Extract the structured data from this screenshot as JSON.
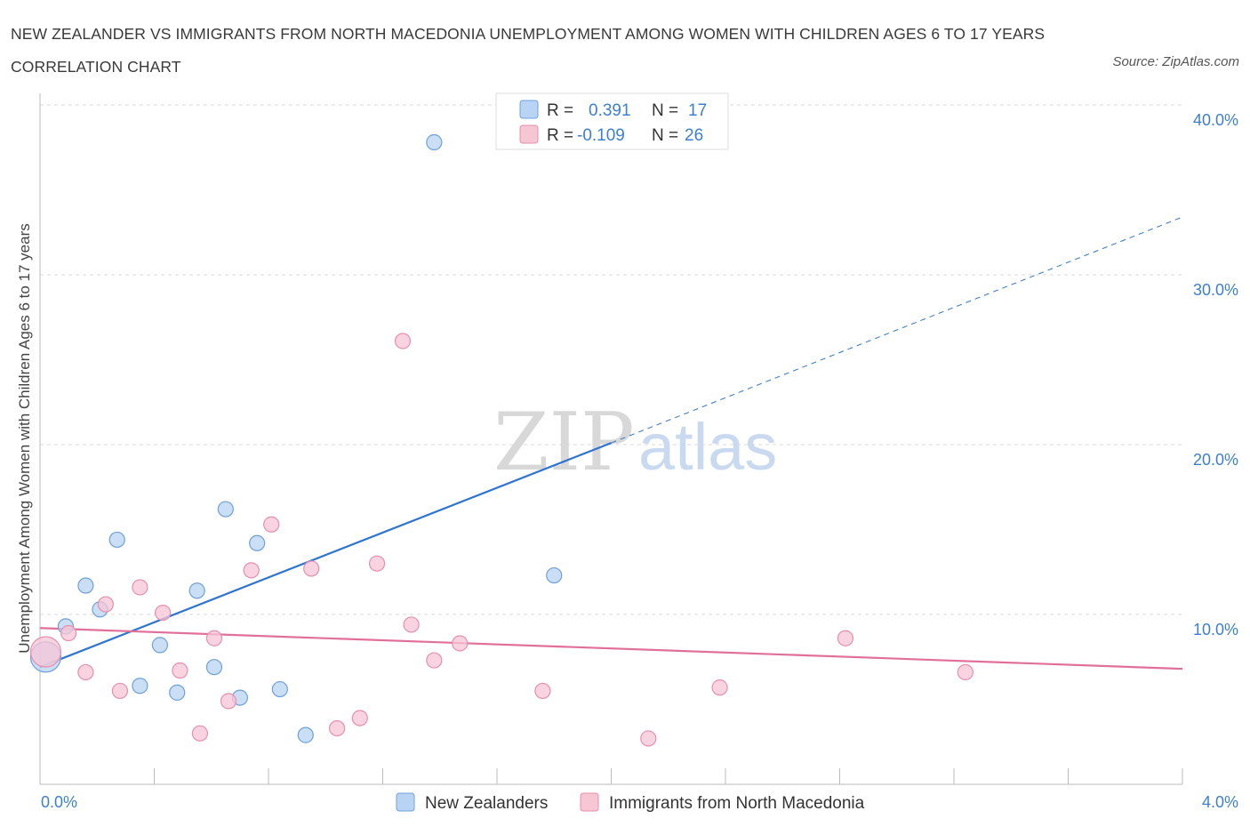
{
  "header": {
    "title": "NEW ZEALANDER VS IMMIGRANTS FROM NORTH MACEDONIA UNEMPLOYMENT AMONG WOMEN WITH CHILDREN AGES 6 TO 17 YEARS CORRELATION CHART",
    "source": "Source: ZipAtlas.com"
  },
  "watermark": {
    "zip": "ZIP",
    "atlas": "atlas"
  },
  "legend_top": {
    "rows": [
      {
        "r_label": "R =",
        "r_value": "0.391",
        "n_label": "N =",
        "n_value": "17"
      },
      {
        "r_label": "R =",
        "r_value": "-0.109",
        "n_label": "N =",
        "n_value": "26"
      }
    ]
  },
  "legend_bottom": {
    "items": [
      "New Zealanders",
      "Immigrants from North Macedonia"
    ]
  },
  "colors": {
    "blue_fill": "#b8d3f3",
    "blue_stroke": "#6fa0dc",
    "blue_line": "#2f74cf",
    "pink_fill": "#f7c6d5",
    "pink_stroke": "#e88fab",
    "pink_line": "#e0709a",
    "grid": "#d9d9d9",
    "axis_text": "#3d7fd0"
  },
  "chart_data": {
    "type": "scatter",
    "title": "NEW ZEALANDER VS IMMIGRANTS FROM NORTH MACEDONIA UNEMPLOYMENT AMONG WOMEN WITH CHILDREN AGES 6 TO 17 YEARS CORRELATION CHART",
    "xlabel": "",
    "ylabel": "Unemployment Among Women with Children Ages 6 to 17 years",
    "xlim": [
      0.0,
      4.0
    ],
    "ylim": [
      0.0,
      40.0
    ],
    "x_tick_labels": [
      "0.0%",
      "4.0%"
    ],
    "y_ticks": [
      10,
      20,
      30,
      40
    ],
    "y_tick_labels": [
      "10.0%",
      "20.0%",
      "30.0%",
      "40.0%"
    ],
    "grid": true,
    "series": [
      {
        "name": "New Zealanders",
        "color_key": "blue",
        "r": 0.391,
        "n": 17,
        "points": [
          {
            "x": 0.02,
            "y": 7.5,
            "big": true
          },
          {
            "x": 0.09,
            "y": 9.3
          },
          {
            "x": 0.16,
            "y": 11.7
          },
          {
            "x": 0.21,
            "y": 10.3
          },
          {
            "x": 0.27,
            "y": 14.4
          },
          {
            "x": 0.35,
            "y": 5.8
          },
          {
            "x": 0.42,
            "y": 8.2
          },
          {
            "x": 0.48,
            "y": 5.4
          },
          {
            "x": 0.55,
            "y": 11.4
          },
          {
            "x": 0.61,
            "y": 6.9
          },
          {
            "x": 0.65,
            "y": 16.2
          },
          {
            "x": 0.7,
            "y": 5.1
          },
          {
            "x": 0.76,
            "y": 14.2
          },
          {
            "x": 0.84,
            "y": 5.6
          },
          {
            "x": 0.93,
            "y": 2.9
          },
          {
            "x": 1.38,
            "y": 37.8
          },
          {
            "x": 1.8,
            "y": 12.3
          }
        ],
        "trend": {
          "x0": 0.0,
          "y0": 6.9,
          "x1": 2.0,
          "y1": 20.1,
          "dash_x1": 4.0,
          "dash_y1": 33.4
        }
      },
      {
        "name": "Immigrants from North Macedonia",
        "color_key": "pink",
        "r": -0.109,
        "n": 26,
        "points": [
          {
            "x": 0.02,
            "y": 7.8,
            "big": true
          },
          {
            "x": 0.1,
            "y": 8.9
          },
          {
            "x": 0.16,
            "y": 6.6
          },
          {
            "x": 0.23,
            "y": 10.6
          },
          {
            "x": 0.28,
            "y": 5.5
          },
          {
            "x": 0.35,
            "y": 11.6
          },
          {
            "x": 0.43,
            "y": 10.1
          },
          {
            "x": 0.49,
            "y": 6.7
          },
          {
            "x": 0.56,
            "y": 3.0
          },
          {
            "x": 0.61,
            "y": 8.6
          },
          {
            "x": 0.66,
            "y": 4.9
          },
          {
            "x": 0.74,
            "y": 12.6
          },
          {
            "x": 0.81,
            "y": 15.3
          },
          {
            "x": 0.95,
            "y": 12.7
          },
          {
            "x": 1.04,
            "y": 3.3
          },
          {
            "x": 1.12,
            "y": 3.9
          },
          {
            "x": 1.18,
            "y": 13.0
          },
          {
            "x": 1.27,
            "y": 26.1
          },
          {
            "x": 1.3,
            "y": 9.4
          },
          {
            "x": 1.38,
            "y": 7.3
          },
          {
            "x": 1.47,
            "y": 8.3
          },
          {
            "x": 1.76,
            "y": 5.5
          },
          {
            "x": 2.13,
            "y": 2.7
          },
          {
            "x": 2.38,
            "y": 5.7
          },
          {
            "x": 2.82,
            "y": 8.6
          },
          {
            "x": 3.24,
            "y": 6.6
          }
        ],
        "trend": {
          "x0": 0.0,
          "y0": 9.2,
          "x1": 4.0,
          "y1": 6.8
        }
      }
    ]
  }
}
